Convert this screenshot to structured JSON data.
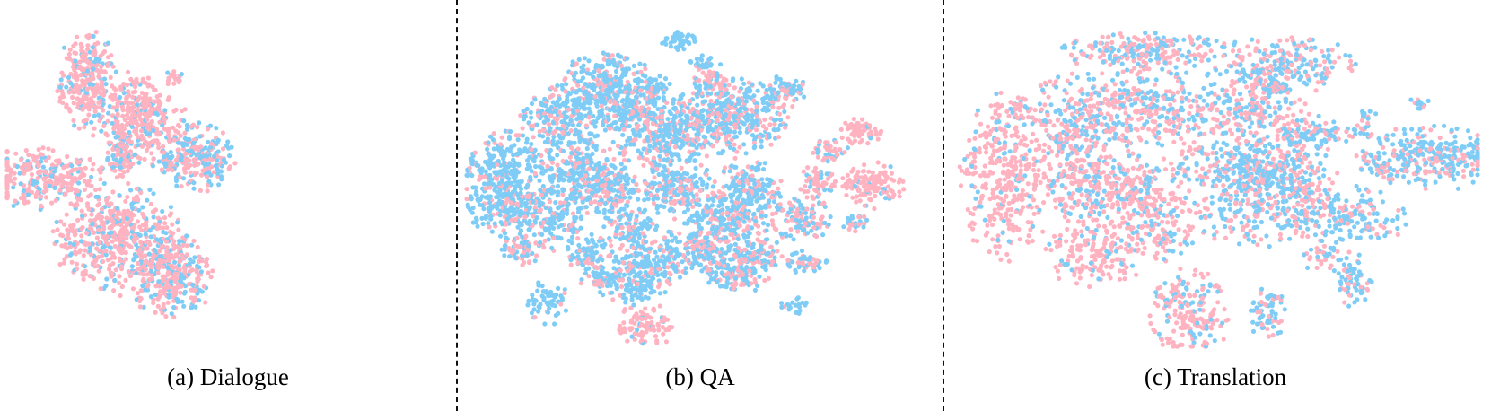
{
  "chart_data": [
    {
      "type": "scatter",
      "caption": "(a) Dialogue",
      "colors": {
        "pink": "#FFB3C1",
        "blue": "#7FCDF6"
      },
      "clusters": [
        {
          "cx": 0.18,
          "cy": 0.79,
          "rx": 0.035,
          "ry": 0.08,
          "n": 260,
          "pinkFrac": 0.75
        },
        {
          "cx": 0.28,
          "cy": 0.72,
          "rx": 0.045,
          "ry": 0.05,
          "n": 120,
          "pinkFrac": 0.75
        },
        {
          "cx": 0.26,
          "cy": 0.55,
          "rx": 0.02,
          "ry": 0.025,
          "n": 60,
          "pinkFrac": 0.7
        },
        {
          "cx": 0.055,
          "cy": 0.5,
          "rx": 0.06,
          "ry": 0.05,
          "n": 200,
          "pinkFrac": 0.8
        },
        {
          "cx": 0.15,
          "cy": 0.51,
          "rx": 0.04,
          "ry": 0.03,
          "n": 80,
          "pinkFrac": 0.85
        },
        {
          "cx": 0.31,
          "cy": 0.64,
          "rx": 0.06,
          "ry": 0.06,
          "n": 210,
          "pinkFrac": 0.8
        },
        {
          "cx": 0.38,
          "cy": 0.8,
          "rx": 0.012,
          "ry": 0.012,
          "n": 18,
          "pinkFrac": 0.8
        },
        {
          "cx": 0.26,
          "cy": 0.61,
          "rx": 0.02,
          "ry": 0.02,
          "n": 30,
          "pinkFrac": 0.5
        },
        {
          "cx": 0.33,
          "cy": 0.68,
          "rx": 0.015,
          "ry": 0.03,
          "n": 25,
          "pinkFrac": 0.4
        },
        {
          "cx": 0.43,
          "cy": 0.56,
          "rx": 0.045,
          "ry": 0.055,
          "n": 230,
          "pinkFrac": 0.45
        },
        {
          "cx": 0.37,
          "cy": 0.55,
          "rx": 0.015,
          "ry": 0.02,
          "n": 20,
          "pinkFrac": 0.3
        },
        {
          "cx": 0.25,
          "cy": 0.32,
          "rx": 0.075,
          "ry": 0.085,
          "n": 520,
          "pinkFrac": 0.75
        },
        {
          "cx": 0.37,
          "cy": 0.21,
          "rx": 0.05,
          "ry": 0.065,
          "n": 300,
          "pinkFrac": 0.6
        }
      ]
    },
    {
      "type": "scatter",
      "caption": "(b) QA",
      "colors": {
        "pink": "#FFB3C1",
        "blue": "#7FCDF6"
      },
      "clusters": [
        {
          "cx": 0.45,
          "cy": 0.91,
          "rx": 0.02,
          "ry": 0.015,
          "n": 40,
          "pinkFrac": 0.05
        },
        {
          "cx": 0.5,
          "cy": 0.85,
          "rx": 0.015,
          "ry": 0.015,
          "n": 20,
          "pinkFrac": 0.2
        },
        {
          "cx": 0.3,
          "cy": 0.76,
          "rx": 0.055,
          "ry": 0.06,
          "n": 380,
          "pinkFrac": 0.25
        },
        {
          "cx": 0.19,
          "cy": 0.68,
          "rx": 0.04,
          "ry": 0.05,
          "n": 170,
          "pinkFrac": 0.3
        },
        {
          "cx": 0.4,
          "cy": 0.77,
          "rx": 0.02,
          "ry": 0.02,
          "n": 40,
          "pinkFrac": 0.2
        },
        {
          "cx": 0.53,
          "cy": 0.79,
          "rx": 0.025,
          "ry": 0.03,
          "n": 60,
          "pinkFrac": 0.5
        },
        {
          "cx": 0.68,
          "cy": 0.76,
          "rx": 0.025,
          "ry": 0.025,
          "n": 70,
          "pinkFrac": 0.45
        },
        {
          "cx": 0.57,
          "cy": 0.68,
          "rx": 0.06,
          "ry": 0.06,
          "n": 380,
          "pinkFrac": 0.4
        },
        {
          "cx": 0.42,
          "cy": 0.64,
          "rx": 0.06,
          "ry": 0.06,
          "n": 380,
          "pinkFrac": 0.3
        },
        {
          "cx": 0.84,
          "cy": 0.64,
          "rx": 0.025,
          "ry": 0.02,
          "n": 70,
          "pinkFrac": 0.95
        },
        {
          "cx": 0.08,
          "cy": 0.48,
          "rx": 0.045,
          "ry": 0.09,
          "n": 420,
          "pinkFrac": 0.2
        },
        {
          "cx": 0.24,
          "cy": 0.53,
          "rx": 0.05,
          "ry": 0.06,
          "n": 260,
          "pinkFrac": 0.25
        },
        {
          "cx": 0.3,
          "cy": 0.46,
          "rx": 0.04,
          "ry": 0.04,
          "n": 160,
          "pinkFrac": 0.3
        },
        {
          "cx": 0.45,
          "cy": 0.47,
          "rx": 0.04,
          "ry": 0.05,
          "n": 200,
          "pinkFrac": 0.3
        },
        {
          "cx": 0.6,
          "cy": 0.46,
          "rx": 0.04,
          "ry": 0.05,
          "n": 200,
          "pinkFrac": 0.35
        },
        {
          "cx": 0.75,
          "cy": 0.49,
          "rx": 0.02,
          "ry": 0.025,
          "n": 60,
          "pinkFrac": 0.6
        },
        {
          "cx": 0.87,
          "cy": 0.48,
          "rx": 0.035,
          "ry": 0.035,
          "n": 130,
          "pinkFrac": 0.9
        },
        {
          "cx": 0.78,
          "cy": 0.58,
          "rx": 0.02,
          "ry": 0.02,
          "n": 40,
          "pinkFrac": 0.7
        },
        {
          "cx": 0.18,
          "cy": 0.38,
          "rx": 0.04,
          "ry": 0.05,
          "n": 150,
          "pinkFrac": 0.3
        },
        {
          "cx": 0.35,
          "cy": 0.35,
          "rx": 0.03,
          "ry": 0.035,
          "n": 100,
          "pinkFrac": 0.3
        },
        {
          "cx": 0.55,
          "cy": 0.36,
          "rx": 0.05,
          "ry": 0.05,
          "n": 200,
          "pinkFrac": 0.3
        },
        {
          "cx": 0.72,
          "cy": 0.38,
          "rx": 0.035,
          "ry": 0.04,
          "n": 120,
          "pinkFrac": 0.5
        },
        {
          "cx": 0.83,
          "cy": 0.37,
          "rx": 0.015,
          "ry": 0.015,
          "n": 25,
          "pinkFrac": 0.5
        },
        {
          "cx": 0.12,
          "cy": 0.28,
          "rx": 0.025,
          "ry": 0.025,
          "n": 60,
          "pinkFrac": 0.4
        },
        {
          "cx": 0.26,
          "cy": 0.28,
          "rx": 0.025,
          "ry": 0.03,
          "n": 70,
          "pinkFrac": 0.3
        },
        {
          "cx": 0.43,
          "cy": 0.27,
          "rx": 0.035,
          "ry": 0.04,
          "n": 110,
          "pinkFrac": 0.3
        },
        {
          "cx": 0.52,
          "cy": 0.28,
          "rx": 0.03,
          "ry": 0.035,
          "n": 100,
          "pinkFrac": 0.4
        },
        {
          "cx": 0.62,
          "cy": 0.27,
          "rx": 0.03,
          "ry": 0.03,
          "n": 90,
          "pinkFrac": 0.4
        },
        {
          "cx": 0.36,
          "cy": 0.21,
          "rx": 0.045,
          "ry": 0.045,
          "n": 200,
          "pinkFrac": 0.2
        },
        {
          "cx": 0.28,
          "cy": 0.2,
          "rx": 0.02,
          "ry": 0.02,
          "n": 40,
          "pinkFrac": 0.3
        },
        {
          "cx": 0.58,
          "cy": 0.21,
          "rx": 0.035,
          "ry": 0.03,
          "n": 110,
          "pinkFrac": 0.3
        },
        {
          "cx": 0.73,
          "cy": 0.25,
          "rx": 0.025,
          "ry": 0.02,
          "n": 50,
          "pinkFrac": 0.3
        },
        {
          "cx": 0.17,
          "cy": 0.13,
          "rx": 0.025,
          "ry": 0.035,
          "n": 60,
          "pinkFrac": 0.1
        },
        {
          "cx": 0.38,
          "cy": 0.06,
          "rx": 0.035,
          "ry": 0.035,
          "n": 90,
          "pinkFrac": 0.9
        },
        {
          "cx": 0.7,
          "cy": 0.12,
          "rx": 0.015,
          "ry": 0.015,
          "n": 20,
          "pinkFrac": 0.1
        }
      ]
    },
    {
      "type": "scatter",
      "caption": "(c) Translation",
      "colors": {
        "pink": "#FFB3C1",
        "blue": "#7FCDF6"
      },
      "clusters": [
        {
          "cx": 0.36,
          "cy": 0.88,
          "rx": 0.085,
          "ry": 0.03,
          "n": 230,
          "pinkFrac": 0.55
        },
        {
          "cx": 0.63,
          "cy": 0.84,
          "rx": 0.07,
          "ry": 0.045,
          "n": 220,
          "pinkFrac": 0.45
        },
        {
          "cx": 0.6,
          "cy": 0.79,
          "rx": 0.025,
          "ry": 0.025,
          "n": 40,
          "pinkFrac": 0.4
        },
        {
          "cx": 0.35,
          "cy": 0.7,
          "rx": 0.14,
          "ry": 0.065,
          "n": 520,
          "pinkFrac": 0.55
        },
        {
          "cx": 0.58,
          "cy": 0.69,
          "rx": 0.05,
          "ry": 0.05,
          "n": 150,
          "pinkFrac": 0.55
        },
        {
          "cx": 0.89,
          "cy": 0.72,
          "rx": 0.012,
          "ry": 0.012,
          "n": 12,
          "pinkFrac": 0.2
        },
        {
          "cx": 0.79,
          "cy": 0.69,
          "rx": 0.01,
          "ry": 0.012,
          "n": 10,
          "pinkFrac": 0.2
        },
        {
          "cx": 0.67,
          "cy": 0.63,
          "rx": 0.025,
          "ry": 0.035,
          "n": 50,
          "pinkFrac": 0.5
        },
        {
          "cx": 0.72,
          "cy": 0.63,
          "rx": 0.018,
          "ry": 0.02,
          "n": 30,
          "pinkFrac": 0.2
        },
        {
          "cx": 0.78,
          "cy": 0.64,
          "rx": 0.015,
          "ry": 0.015,
          "n": 20,
          "pinkFrac": 0.3
        },
        {
          "cx": 0.1,
          "cy": 0.5,
          "rx": 0.045,
          "ry": 0.13,
          "n": 380,
          "pinkFrac": 0.85
        },
        {
          "cx": 0.24,
          "cy": 0.55,
          "rx": 0.035,
          "ry": 0.1,
          "n": 200,
          "pinkFrac": 0.6
        },
        {
          "cx": 0.33,
          "cy": 0.46,
          "rx": 0.08,
          "ry": 0.06,
          "n": 300,
          "pinkFrac": 0.7
        },
        {
          "cx": 0.55,
          "cy": 0.54,
          "rx": 0.04,
          "ry": 0.04,
          "n": 140,
          "pinkFrac": 0.3
        },
        {
          "cx": 0.64,
          "cy": 0.52,
          "rx": 0.05,
          "ry": 0.06,
          "n": 200,
          "pinkFrac": 0.5
        },
        {
          "cx": 0.46,
          "cy": 0.57,
          "rx": 0.015,
          "ry": 0.02,
          "n": 20,
          "pinkFrac": 0.5
        },
        {
          "cx": 0.91,
          "cy": 0.56,
          "rx": 0.075,
          "ry": 0.05,
          "n": 300,
          "pinkFrac": 0.3
        },
        {
          "cx": 0.82,
          "cy": 0.53,
          "rx": 0.015,
          "ry": 0.02,
          "n": 20,
          "pinkFrac": 0.5
        },
        {
          "cx": 0.57,
          "cy": 0.42,
          "rx": 0.07,
          "ry": 0.07,
          "n": 240,
          "pinkFrac": 0.45
        },
        {
          "cx": 0.75,
          "cy": 0.38,
          "rx": 0.06,
          "ry": 0.05,
          "n": 190,
          "pinkFrac": 0.3
        },
        {
          "cx": 0.4,
          "cy": 0.33,
          "rx": 0.035,
          "ry": 0.04,
          "n": 80,
          "pinkFrac": 0.6
        },
        {
          "cx": 0.27,
          "cy": 0.28,
          "rx": 0.05,
          "ry": 0.055,
          "n": 170,
          "pinkFrac": 0.85
        },
        {
          "cx": 0.7,
          "cy": 0.27,
          "rx": 0.02,
          "ry": 0.025,
          "n": 30,
          "pinkFrac": 0.5
        },
        {
          "cx": 0.76,
          "cy": 0.19,
          "rx": 0.02,
          "ry": 0.045,
          "n": 70,
          "pinkFrac": 0.3
        },
        {
          "cx": 0.45,
          "cy": 0.1,
          "rx": 0.04,
          "ry": 0.07,
          "n": 200,
          "pinkFrac": 0.7
        },
        {
          "cx": 0.6,
          "cy": 0.09,
          "rx": 0.018,
          "ry": 0.05,
          "n": 70,
          "pinkFrac": 0.3
        }
      ]
    }
  ]
}
